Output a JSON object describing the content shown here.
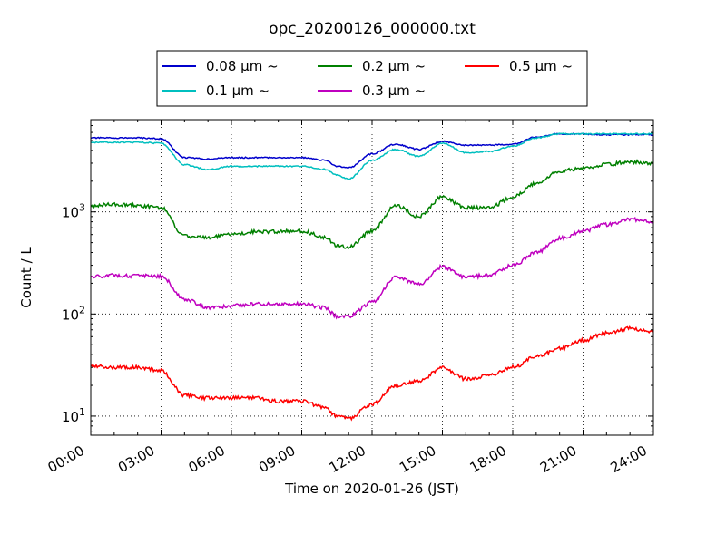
{
  "chart_data": {
    "type": "line",
    "title": "opc_20200126_000000.txt",
    "xlabel": "Time on 2020-01-26 (JST)",
    "ylabel": "Count / L",
    "y_scale": "log",
    "xlim": [
      "00:00",
      "24:00"
    ],
    "ylim": [
      6.5,
      8000
    ],
    "grid": true,
    "legend": {
      "placement": "top-center, above plot",
      "columns": 3
    },
    "x_ticks": [
      "00:00",
      "03:00",
      "06:00",
      "09:00",
      "12:00",
      "15:00",
      "18:00",
      "21:00",
      "24:00"
    ],
    "y_ticks": [
      {
        "value": 10,
        "base": "10",
        "exp": "1"
      },
      {
        "value": 100,
        "base": "10",
        "exp": "2"
      },
      {
        "value": 1000,
        "base": "10",
        "exp": "3"
      }
    ],
    "x": [
      "00:00",
      "01:00",
      "02:00",
      "03:00",
      "04:00",
      "05:00",
      "06:00",
      "07:00",
      "08:00",
      "09:00",
      "10:00",
      "10:30",
      "11:00",
      "12:00",
      "13:00",
      "14:00",
      "15:00",
      "16:00",
      "17:00",
      "18:00",
      "19:00",
      "20:00",
      "21:00",
      "22:00",
      "23:00",
      "24:00"
    ],
    "series": [
      {
        "name": "0.08 μm ~",
        "color": "#0000cc",
        "values": [
          5300,
          5300,
          5300,
          5200,
          3400,
          3300,
          3400,
          3400,
          3400,
          3400,
          3200,
          2800,
          2700,
          3700,
          4600,
          4100,
          4900,
          4500,
          4500,
          4600,
          5400,
          5800,
          5800,
          5700,
          5700,
          5700
        ]
      },
      {
        "name": "0.1 μm ~",
        "color": "#00bfbf",
        "values": [
          4800,
          4800,
          4800,
          4700,
          2900,
          2600,
          2800,
          2800,
          2800,
          2800,
          2600,
          2300,
          2100,
          3200,
          4100,
          3500,
          4700,
          3800,
          3900,
          4400,
          5300,
          5800,
          5800,
          5800,
          5800,
          5800
        ]
      },
      {
        "name": "0.2 μm ~",
        "color": "#008000",
        "values": [
          1150,
          1180,
          1150,
          1100,
          580,
          560,
          600,
          640,
          640,
          650,
          560,
          470,
          450,
          650,
          1150,
          900,
          1400,
          1100,
          1100,
          1400,
          1900,
          2500,
          2700,
          2900,
          3100,
          3000
        ]
      },
      {
        "name": "0.3 μm ~",
        "color": "#bf00bf",
        "values": [
          230,
          240,
          235,
          235,
          140,
          115,
          120,
          125,
          125,
          125,
          115,
          95,
          95,
          130,
          230,
          195,
          290,
          230,
          240,
          300,
          400,
          550,
          650,
          750,
          850,
          800
        ]
      },
      {
        "name": "0.5 μm ~",
        "color": "#ff0000",
        "values": [
          31,
          30,
          30,
          28,
          16,
          15,
          15,
          15,
          14,
          14,
          12,
          10,
          9.5,
          13,
          20,
          22,
          30,
          23,
          25,
          30,
          38,
          46,
          55,
          65,
          72,
          68
        ]
      }
    ]
  }
}
